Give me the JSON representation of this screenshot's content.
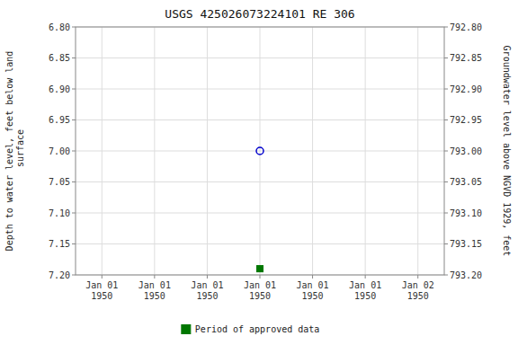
{
  "chart_data": {
    "type": "scatter",
    "title": "USGS 425026073224101 RE 306",
    "ylabel": "Depth to water level, feet below land\n surface",
    "y2label": "Groundwater level above NGVD 1929, feet",
    "categories": [
      "Jan 01\n1950",
      "Jan 01\n1950",
      "Jan 01\n1950",
      "Jan 01\n1950",
      "Jan 01\n1950",
      "Jan 01\n1950",
      "Jan 02\n1950"
    ],
    "series": [
      {
        "color": "#0000cc",
        "marker": "open-circle",
        "values": [
          null,
          null,
          null,
          7.0,
          null,
          null,
          null
        ]
      },
      {
        "name": "Period of approved data",
        "color": "#007700",
        "marker": "square",
        "values": [
          null,
          null,
          null,
          7.19,
          null,
          null,
          null
        ]
      }
    ],
    "ylim": [
      7.2,
      6.8
    ],
    "yticks": [
      {
        "value": 6.8,
        "label": "6.80"
      },
      {
        "value": 6.85,
        "label": "6.85"
      },
      {
        "value": 6.9,
        "label": "6.90"
      },
      {
        "value": 6.95,
        "label": "6.95"
      },
      {
        "value": 7.0,
        "label": "7.00"
      },
      {
        "value": 7.05,
        "label": "7.05"
      },
      {
        "value": 7.1,
        "label": "7.10"
      },
      {
        "value": 7.15,
        "label": "7.15"
      },
      {
        "value": 7.2,
        "label": "7.20"
      }
    ],
    "y2lim": [
      793.2,
      792.8
    ],
    "y2ticks": [
      {
        "value": 793.2,
        "label": "793.20"
      },
      {
        "value": 793.15,
        "label": "793.15"
      },
      {
        "value": 793.1,
        "label": "793.10"
      },
      {
        "value": 793.05,
        "label": "793.05"
      },
      {
        "value": 793.0,
        "label": "793.00"
      },
      {
        "value": 792.95,
        "label": "792.95"
      },
      {
        "value": 792.9,
        "label": "792.90"
      },
      {
        "value": 792.85,
        "label": "792.85"
      },
      {
        "value": 792.8,
        "label": "792.80"
      }
    ],
    "grid": true,
    "legend": "bottom"
  }
}
